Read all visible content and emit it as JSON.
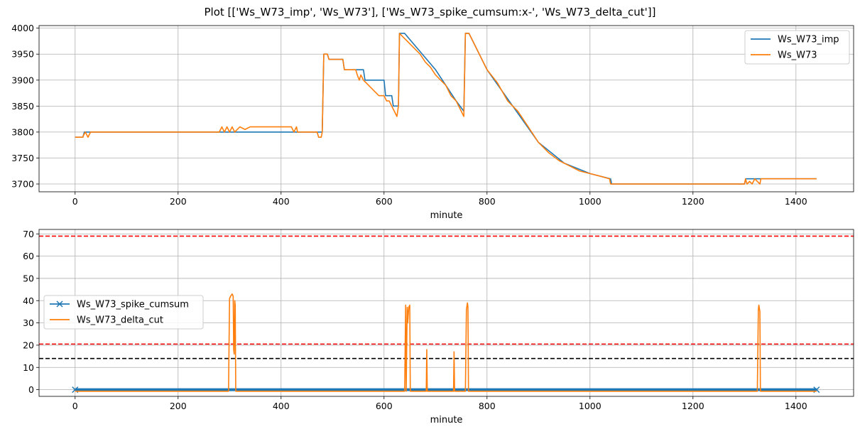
{
  "figure": {
    "title": "Plot [['Ws_W73_imp', 'Ws_W73'], ['Ws_W73_spike_cumsum:x-', 'Ws_W73_delta_cut']]"
  },
  "chart_data": [
    {
      "type": "line",
      "xlabel": "minute",
      "ylabel": "",
      "xlim": [
        -70,
        1512
      ],
      "ylim": [
        3685,
        4005
      ],
      "x_ticks": [
        0,
        200,
        400,
        600,
        800,
        1000,
        1200,
        1400
      ],
      "y_ticks": [
        3700,
        3750,
        3800,
        3850,
        3900,
        3950,
        4000
      ],
      "grid": true,
      "legend_position": "top-right",
      "series": [
        {
          "name": "Ws_W73_imp",
          "color": "#1f77b4",
          "points": [
            [
              0,
              3790
            ],
            [
              15,
              3790
            ],
            [
              18,
              3800
            ],
            [
              480,
              3800
            ],
            [
              483,
              3950
            ],
            [
              490,
              3950
            ],
            [
              493,
              3940
            ],
            [
              520,
              3940
            ],
            [
              523,
              3920
            ],
            [
              560,
              3920
            ],
            [
              563,
              3900
            ],
            [
              600,
              3900
            ],
            [
              603,
              3870
            ],
            [
              615,
              3870
            ],
            [
              618,
              3850
            ],
            [
              628,
              3850
            ],
            [
              630,
              3990
            ],
            [
              640,
              3990
            ],
            [
              700,
              3920
            ],
            [
              740,
              3860
            ],
            [
              755,
              3840
            ],
            [
              758,
              3990
            ],
            [
              765,
              3990
            ],
            [
              800,
              3920
            ],
            [
              900,
              3780
            ],
            [
              950,
              3740
            ],
            [
              1000,
              3720
            ],
            [
              1040,
              3710
            ],
            [
              1042,
              3700
            ],
            [
              1300,
              3700
            ],
            [
              1303,
              3710
            ],
            [
              1440,
              3710
            ]
          ]
        },
        {
          "name": "Ws_W73",
          "color": "#ff7f0e",
          "points": [
            [
              0,
              3790
            ],
            [
              15,
              3790
            ],
            [
              17,
              3795
            ],
            [
              20,
              3800
            ],
            [
              25,
              3790
            ],
            [
              30,
              3800
            ],
            [
              280,
              3800
            ],
            [
              285,
              3810
            ],
            [
              290,
              3800
            ],
            [
              295,
              3810
            ],
            [
              300,
              3800
            ],
            [
              305,
              3810
            ],
            [
              310,
              3800
            ],
            [
              320,
              3810
            ],
            [
              330,
              3805
            ],
            [
              340,
              3810
            ],
            [
              420,
              3810
            ],
            [
              425,
              3800
            ],
            [
              430,
              3810
            ],
            [
              432,
              3800
            ],
            [
              470,
              3800
            ],
            [
              473,
              3790
            ],
            [
              478,
              3790
            ],
            [
              480,
              3800
            ],
            [
              483,
              3950
            ],
            [
              490,
              3950
            ],
            [
              493,
              3940
            ],
            [
              520,
              3940
            ],
            [
              523,
              3920
            ],
            [
              545,
              3920
            ],
            [
              548,
              3910
            ],
            [
              552,
              3900
            ],
            [
              555,
              3910
            ],
            [
              560,
              3900
            ],
            [
              570,
              3890
            ],
            [
              580,
              3880
            ],
            [
              590,
              3870
            ],
            [
              600,
              3870
            ],
            [
              605,
              3860
            ],
            [
              610,
              3860
            ],
            [
              615,
              3850
            ],
            [
              620,
              3840
            ],
            [
              625,
              3830
            ],
            [
              628,
              3850
            ],
            [
              630,
              3990
            ],
            [
              635,
              3985
            ],
            [
              640,
              3980
            ],
            [
              650,
              3970
            ],
            [
              660,
              3960
            ],
            [
              670,
              3950
            ],
            [
              680,
              3935
            ],
            [
              690,
              3925
            ],
            [
              700,
              3910
            ],
            [
              710,
              3900
            ],
            [
              720,
              3890
            ],
            [
              730,
              3870
            ],
            [
              740,
              3860
            ],
            [
              750,
              3840
            ],
            [
              755,
              3830
            ],
            [
              758,
              3990
            ],
            [
              765,
              3990
            ],
            [
              770,
              3980
            ],
            [
              780,
              3960
            ],
            [
              790,
              3940
            ],
            [
              800,
              3920
            ],
            [
              820,
              3895
            ],
            [
              840,
              3860
            ],
            [
              860,
              3840
            ],
            [
              880,
              3810
            ],
            [
              900,
              3780
            ],
            [
              920,
              3760
            ],
            [
              940,
              3745
            ],
            [
              960,
              3735
            ],
            [
              980,
              3725
            ],
            [
              1000,
              3720
            ],
            [
              1020,
              3715
            ],
            [
              1038,
              3710
            ],
            [
              1040,
              3700
            ],
            [
              1300,
              3700
            ],
            [
              1302,
              3710
            ],
            [
              1305,
              3700
            ],
            [
              1310,
              3705
            ],
            [
              1315,
              3700
            ],
            [
              1320,
              3710
            ],
            [
              1330,
              3700
            ],
            [
              1332,
              3710
            ],
            [
              1440,
              3710
            ]
          ]
        }
      ],
      "reference_lines": []
    },
    {
      "type": "line",
      "xlabel": "minute",
      "ylabel": "",
      "xlim": [
        -70,
        1512
      ],
      "ylim": [
        -3,
        72
      ],
      "x_ticks": [
        0,
        200,
        400,
        600,
        800,
        1000,
        1200,
        1400
      ],
      "y_ticks": [
        0,
        10,
        20,
        30,
        40,
        50,
        60,
        70
      ],
      "grid": true,
      "legend_position": "center-left",
      "series": [
        {
          "name": "Ws_W73_spike_cumsum",
          "color": "#1f77b4",
          "marker": "x",
          "points": [
            [
              0,
              0
            ],
            [
              1440,
              0
            ]
          ]
        },
        {
          "name": "Ws_W73_delta_cut",
          "color": "#ff7f0e",
          "points": [
            [
              0,
              -0.7
            ],
            [
              298,
              -0.7
            ],
            [
              300,
              41
            ],
            [
              302,
              42
            ],
            [
              305,
              43
            ],
            [
              307,
              42
            ],
            [
              308,
              18
            ],
            [
              309,
              16
            ],
            [
              310,
              40
            ],
            [
              311,
              38
            ],
            [
              312,
              -0.7
            ],
            [
              640,
              -0.7
            ],
            [
              642,
              38
            ],
            [
              643,
              -0.7
            ],
            [
              645,
              37
            ],
            [
              646,
              30
            ],
            [
              648,
              37
            ],
            [
              650,
              38
            ],
            [
              651,
              -0.7
            ],
            [
              682,
              -0.7
            ],
            [
              683,
              18
            ],
            [
              684,
              -0.7
            ],
            [
              735,
              -0.7
            ],
            [
              736,
              17
            ],
            [
              737,
              -0.7
            ],
            [
              758,
              -0.7
            ],
            [
              760,
              36
            ],
            [
              762,
              39
            ],
            [
              763,
              37
            ],
            [
              764,
              -0.7
            ],
            [
              1325,
              -0.7
            ],
            [
              1327,
              36
            ],
            [
              1328,
              38
            ],
            [
              1330,
              35
            ],
            [
              1331,
              -0.7
            ],
            [
              1440,
              -0.7
            ]
          ]
        }
      ],
      "reference_lines": [
        {
          "y": 69,
          "color": "#ff0000"
        },
        {
          "y": 20.5,
          "color": "#ff0000"
        },
        {
          "y": 14,
          "color": "#000000"
        }
      ]
    }
  ]
}
